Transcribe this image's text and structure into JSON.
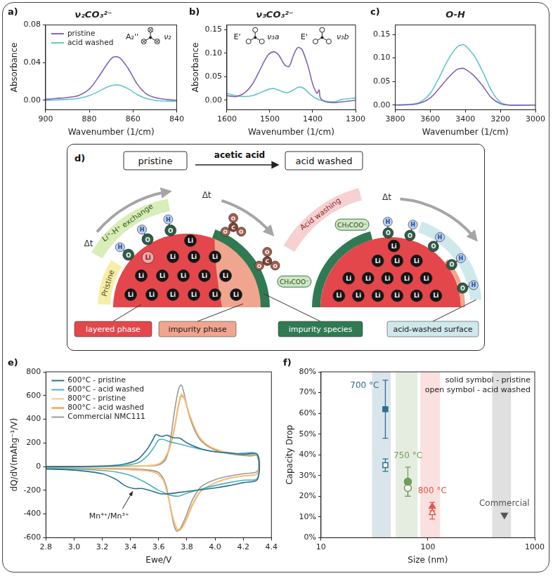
{
  "chart_data": [
    {
      "panel_label": "a)",
      "type": "line",
      "title": "ν₂CO₃²⁻",
      "x_label": "Wavenumber (1/cm)",
      "y_label": "Absorbance",
      "xlim": [
        900,
        840
      ],
      "xticks": [
        900,
        880,
        860,
        840
      ],
      "ylim": [
        -0.01,
        0.08
      ],
      "yticks": [
        {
          "value": 0,
          "label": "0.00"
        },
        0.04,
        0.08
      ],
      "legend": "upper left",
      "annotations": [
        "A₂''",
        "ν₂"
      ],
      "series": [
        {
          "name": "pristine",
          "color": "#7f63b8",
          "x": [
            900,
            895,
            890,
            885,
            880,
            876,
            872,
            869,
            866,
            862,
            858,
            854,
            850,
            845,
            840
          ],
          "values": [
            0.001,
            0.002,
            0.003,
            0.005,
            0.012,
            0.024,
            0.038,
            0.046,
            0.045,
            0.033,
            0.017,
            0.007,
            0.003,
            0.001,
            0.0
          ]
        },
        {
          "name": "acid washed",
          "color": "#63c5c9",
          "x": [
            900,
            890,
            885,
            880,
            876,
            872,
            869,
            866,
            862,
            858,
            854,
            850,
            845,
            840
          ],
          "values": [
            0.0,
            0.001,
            0.002,
            0.005,
            0.009,
            0.014,
            0.016,
            0.016,
            0.012,
            0.006,
            0.002,
            0.0,
            -0.001,
            -0.001
          ]
        }
      ]
    },
    {
      "panel_label": "b)",
      "type": "line",
      "title": "ν₃CO₃²⁻",
      "x_label": "Wavenumber (1/cm)",
      "y_label": "Absorbance",
      "xlim": [
        1600,
        1300
      ],
      "xticks": [
        1600,
        1500,
        1400,
        1300
      ],
      "ylim": [
        -0.02,
        0.16
      ],
      "yticks": [
        {
          "value": 0,
          "label": "0.00"
        },
        0.05,
        {
          "value": 0.1,
          "label": "0.10"
        },
        0.15
      ],
      "annotations": [
        "E'",
        "ν₃a",
        "E'",
        "ν₃b"
      ],
      "series": [
        {
          "name": "pristine",
          "color": "#7f63b8",
          "x": [
            1600,
            1580,
            1560,
            1540,
            1520,
            1505,
            1492,
            1480,
            1465,
            1455,
            1445,
            1435,
            1425,
            1410,
            1400,
            1390,
            1385,
            1382,
            1370,
            1350,
            1330,
            1300
          ],
          "values": [
            0.01,
            0.008,
            0.015,
            0.035,
            0.07,
            0.095,
            0.103,
            0.097,
            0.075,
            0.072,
            0.095,
            0.112,
            0.108,
            0.07,
            0.035,
            0.015,
            0.022,
            0.005,
            -0.003,
            -0.005,
            -0.003,
            0.0
          ]
        },
        {
          "name": "acid washed",
          "color": "#63c5c9",
          "x": [
            1600,
            1580,
            1560,
            1540,
            1520,
            1500,
            1490,
            1475,
            1460,
            1445,
            1433,
            1420,
            1405,
            1390,
            1370,
            1350,
            1330,
            1300
          ],
          "values": [
            0.015,
            0.01,
            0.008,
            0.01,
            0.017,
            0.024,
            0.025,
            0.02,
            0.016,
            0.022,
            0.028,
            0.025,
            0.012,
            0.003,
            -0.002,
            -0.003,
            0.002,
            0.005
          ]
        }
      ]
    },
    {
      "panel_label": "c)",
      "type": "line",
      "title": "O-H",
      "x_label": "Wavenumber (1/cm)",
      "xlim": [
        3800,
        3000
      ],
      "xticks": [
        3800,
        3600,
        3400,
        3200,
        3000
      ],
      "ylim": [
        -0.01,
        0.17
      ],
      "yticks": [
        {
          "value": 0,
          "label": "0.00"
        },
        0.05,
        {
          "value": 0.1,
          "label": "0.10"
        },
        0.15
      ],
      "series": [
        {
          "name": "pristine",
          "color": "#7f63b8",
          "x": [
            3800,
            3700,
            3650,
            3600,
            3550,
            3500,
            3450,
            3420,
            3400,
            3350,
            3300,
            3250,
            3200,
            3150,
            3000
          ],
          "values": [
            0.0,
            0.001,
            0.005,
            0.015,
            0.035,
            0.057,
            0.075,
            0.078,
            0.076,
            0.062,
            0.04,
            0.015,
            0.003,
            0.0,
            0.0
          ]
        },
        {
          "name": "acid washed",
          "color": "#63c5c9",
          "x": [
            3800,
            3700,
            3650,
            3600,
            3550,
            3500,
            3450,
            3420,
            3400,
            3350,
            3300,
            3250,
            3200,
            3150,
            3000
          ],
          "values": [
            0.0,
            0.002,
            0.008,
            0.025,
            0.058,
            0.095,
            0.122,
            0.128,
            0.126,
            0.105,
            0.07,
            0.03,
            0.006,
            0.0,
            0.0
          ]
        }
      ]
    },
    {
      "panel_label": "e)",
      "type": "line",
      "x_label": "Ewe/V",
      "y_label": "dQ/dV(mAhg⁻¹/V)",
      "xlim": [
        2.8,
        4.4
      ],
      "xticks": [
        2.8,
        {
          "value": 3.0,
          "label": "3.0"
        },
        3.2,
        3.4,
        3.6,
        3.8,
        {
          "value": 4.0,
          "label": "4.0"
        },
        4.2,
        4.4
      ],
      "ylim": [
        -600,
        800
      ],
      "yticks": [
        -600,
        -400,
        -200,
        0,
        200,
        400,
        600,
        800
      ],
      "legend": "upper left",
      "annotations": [
        "Mn⁴⁺/Mn³⁺"
      ],
      "series": [
        {
          "name": "600°C - pristine",
          "color": "#2c6e8e",
          "x": [
            2.8,
            3.2,
            3.35,
            3.45,
            3.52,
            3.56,
            3.58,
            3.62,
            3.66,
            3.7,
            3.75,
            3.8,
            3.9,
            4.0,
            4.1,
            4.2,
            4.3,
            4.3,
            4.2,
            4.1,
            4.0,
            3.9,
            3.8,
            3.7,
            3.62,
            3.55,
            3.48,
            3.42,
            3.36,
            3.3,
            3.2,
            3.0,
            2.8
          ],
          "values": [
            0,
            5,
            20,
            60,
            150,
            230,
            270,
            255,
            265,
            245,
            240,
            200,
            150,
            125,
            115,
            105,
            100,
            -110,
            -135,
            -160,
            -180,
            -195,
            -210,
            -225,
            -230,
            -205,
            -185,
            -185,
            -160,
            -110,
            -60,
            -30,
            -20
          ]
        },
        {
          "name": "600°C - acid washed",
          "color": "#45b3c0",
          "x": [
            2.8,
            3.3,
            3.45,
            3.52,
            3.57,
            3.6,
            3.63,
            3.68,
            3.75,
            3.85,
            3.95,
            4.05,
            4.15,
            4.3,
            4.3,
            4.2,
            4.1,
            4.0,
            3.9,
            3.8,
            3.74,
            3.68,
            3.6,
            3.5,
            3.4,
            3.3,
            3.1,
            2.8
          ],
          "values": [
            0,
            5,
            30,
            90,
            170,
            225,
            230,
            210,
            190,
            160,
            135,
            120,
            110,
            105,
            -100,
            -115,
            -135,
            -160,
            -190,
            -225,
            -250,
            -240,
            -200,
            -130,
            -75,
            -45,
            -25,
            -15
          ]
        },
        {
          "name": "800°C - pristine",
          "color": "#f7c684",
          "x": [
            2.8,
            3.3,
            3.55,
            3.62,
            3.67,
            3.71,
            3.74,
            3.76,
            3.78,
            3.82,
            3.88,
            3.95,
            4.05,
            4.15,
            4.25,
            4.3,
            4.3,
            4.2,
            4.1,
            4.0,
            3.9,
            3.84,
            3.79,
            3.75,
            3.73,
            3.7,
            3.67,
            3.63,
            3.57,
            3.45,
            3.2,
            2.8
          ],
          "values": [
            0,
            3,
            10,
            40,
            140,
            330,
            530,
            610,
            590,
            440,
            270,
            180,
            130,
            110,
            100,
            95,
            -60,
            -80,
            -100,
            -140,
            -210,
            -330,
            -470,
            -540,
            -530,
            -430,
            -270,
            -110,
            -50,
            -30,
            -20,
            -15
          ]
        },
        {
          "name": "800°C - acid washed",
          "color": "#f0922e",
          "x": [
            2.8,
            3.3,
            3.55,
            3.62,
            3.67,
            3.71,
            3.74,
            3.76,
            3.78,
            3.82,
            3.88,
            3.95,
            4.05,
            4.15,
            4.25,
            4.3,
            4.3,
            4.2,
            4.1,
            4.0,
            3.9,
            3.84,
            3.79,
            3.75,
            3.73,
            3.7,
            3.67,
            3.63,
            3.57,
            3.45,
            3.2,
            2.8
          ],
          "values": [
            0,
            3,
            10,
            35,
            130,
            310,
            510,
            595,
            580,
            430,
            265,
            175,
            128,
            108,
            98,
            93,
            -58,
            -78,
            -98,
            -138,
            -205,
            -320,
            -460,
            -530,
            -525,
            -425,
            -265,
            -108,
            -48,
            -28,
            -18,
            -13
          ]
        },
        {
          "name": "Commercial NMC111",
          "color": "#9a9a9a",
          "x": [
            2.8,
            3.2,
            3.5,
            3.6,
            3.65,
            3.68,
            3.71,
            3.74,
            3.76,
            3.78,
            3.82,
            3.88,
            3.95,
            4.05,
            4.15,
            4.25,
            4.3,
            4.3,
            4.2,
            4.1,
            4.0,
            3.9,
            3.84,
            3.79,
            3.75,
            3.73,
            3.71,
            3.68,
            3.65,
            3.6,
            3.5,
            3.2,
            2.8
          ],
          "values": [
            0,
            2,
            5,
            15,
            60,
            200,
            450,
            650,
            690,
            620,
            420,
            250,
            170,
            120,
            100,
            90,
            90,
            -40,
            -60,
            -80,
            -110,
            -170,
            -280,
            -430,
            -530,
            -545,
            -500,
            -330,
            -150,
            -50,
            -25,
            -15,
            -10
          ]
        }
      ]
    },
    {
      "panel_label": "f)",
      "type": "scatter",
      "log": "x",
      "x_label": "Size (nm)",
      "y_label": "Capacity Drop",
      "xlim": [
        10,
        1000
      ],
      "xticks": [
        10,
        100,
        1000
      ],
      "ylim": [
        0,
        80
      ],
      "yticks": [
        {
          "value": 0,
          "label": "0%"
        },
        {
          "value": 10,
          "label": "10%"
        },
        {
          "value": 20,
          "label": "20%"
        },
        {
          "value": 30,
          "label": "30%"
        },
        {
          "value": 40,
          "label": "40%"
        },
        {
          "value": 50,
          "label": "50%"
        },
        {
          "value": 60,
          "label": "60%"
        },
        {
          "value": 70,
          "label": "70%"
        },
        {
          "value": 80,
          "label": "80%"
        }
      ],
      "annotations": [
        "solid symbol - pristine",
        "open symbol - acid washed"
      ],
      "groups": [
        {
          "label": "700 °C",
          "color": "#2c6e8e",
          "band": [
            30,
            45
          ],
          "points": [
            {
              "x": 40,
              "value": 62,
              "error": 14,
              "marker": "square"
            },
            {
              "x": 40,
              "value": 35,
              "error": 3,
              "marker": "square-open"
            }
          ]
        },
        {
          "label": "750 °C",
          "color": "#6f9c5a",
          "band": [
            50,
            80
          ],
          "points": [
            {
              "x": 65,
              "value": 27,
              "error": 7,
              "marker": "circle"
            },
            {
              "x": 65,
              "value": 24,
              "error": 4,
              "marker": "circle-open"
            }
          ]
        },
        {
          "label": "800 °C",
          "color": "#e2574c",
          "band": [
            85,
            130
          ],
          "points": [
            {
              "x": 110,
              "value": 15,
              "error": 2,
              "marker": "triangle"
            },
            {
              "x": 110,
              "value": 12,
              "error": 3,
              "marker": "triangle-open"
            }
          ]
        },
        {
          "label": "Commercial",
          "color": "#555555",
          "band": [
            400,
            600
          ],
          "points": [
            {
              "x": 520,
              "value": 11,
              "marker": "triangle-down"
            }
          ]
        }
      ]
    }
  ],
  "diagram": {
    "panel_label": "d)",
    "from": "pristine",
    "process": "acetic acid",
    "to": "acid washed",
    "time_label": "Δt",
    "stages": {
      "pristine": "Pristine",
      "exchange": "Li⁺-H⁺ exchange",
      "washing": "Acid washing"
    },
    "atoms": {
      "lithium": "Li",
      "oxygen": "O",
      "hydrogen": "H",
      "carbon": "C",
      "acetate": "CH₃COO⁻"
    },
    "keys": [
      {
        "text": "layered phase",
        "color": "#e3474b"
      },
      {
        "text": "impurity phase",
        "color": "#f0a58f"
      },
      {
        "text": "impurity species",
        "color": "#2f7a52"
      },
      {
        "text": "acid-washed surface",
        "color": "#cfe8ec"
      }
    ]
  }
}
